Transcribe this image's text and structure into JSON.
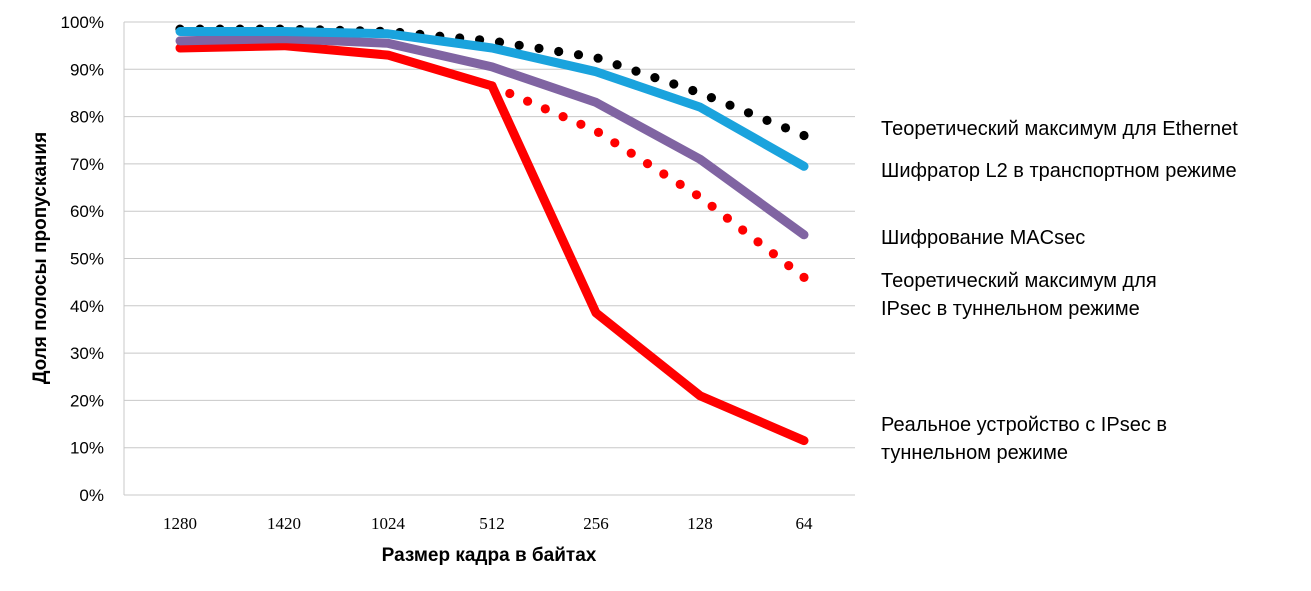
{
  "chart_data": {
    "type": "line",
    "title": "",
    "xlabel": "Размер кадра в байтах",
    "ylabel": "Доля полосы пропускания",
    "categories": [
      "1280",
      "1420",
      "1024",
      "512",
      "256",
      "128",
      "64"
    ],
    "yticks": [
      "0%",
      "10%",
      "20%",
      "30%",
      "40%",
      "50%",
      "60%",
      "70%",
      "80%",
      "90%",
      "100%"
    ],
    "ylim": [
      0,
      100
    ],
    "grid": true,
    "legend_position": "right",
    "series": [
      {
        "id": "ethernet-max",
        "name_lines": [
          "Теоретический максимум для Ethernet"
        ],
        "values": [
          98.5,
          98.5,
          98.0,
          96.0,
          92.5,
          85.0,
          76.0
        ],
        "color": "#000000",
        "style": "dotted"
      },
      {
        "id": "l2-encryptor",
        "name_lines": [
          "Шифратор L2 в транспортном режиме"
        ],
        "values": [
          98.0,
          98.0,
          97.5,
          94.5,
          89.5,
          82.0,
          69.5
        ],
        "color": "#1aa3dd",
        "style": "solid"
      },
      {
        "id": "macsec",
        "name_lines": [
          "Шифрование MACsec"
        ],
        "values": [
          96.0,
          96.5,
          95.5,
          90.5,
          83.0,
          71.0,
          55.0
        ],
        "color": "#8064a2",
        "style": "solid"
      },
      {
        "id": "ipsec-max",
        "name_lines": [
          "Теоретический максимум для",
          "IPsec в туннельном режиме"
        ],
        "values": [
          null,
          null,
          null,
          86.5,
          77.0,
          63.0,
          46.0
        ],
        "color": "#ff0000",
        "style": "dotted"
      },
      {
        "id": "ipsec-real",
        "name_lines": [
          "Реальное устройство с IPsec в",
          "туннельном режиме"
        ],
        "values": [
          94.5,
          95.0,
          93.0,
          86.5,
          38.5,
          21.0,
          11.5
        ],
        "color": "#ff0000",
        "style": "solid"
      }
    ]
  }
}
